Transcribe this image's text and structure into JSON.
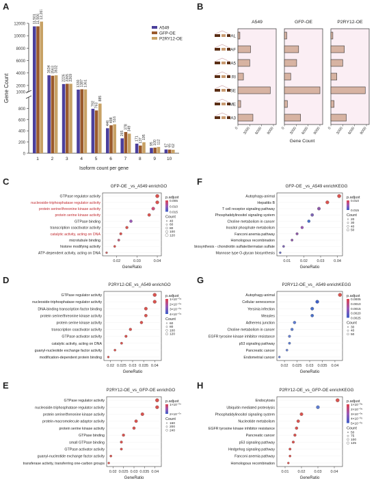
{
  "panels": {
    "A": {
      "label": "A",
      "chart_data": {
        "type": "bar",
        "ylabel": "Gene Count",
        "xlabel": "Isoform count per gene",
        "categories": [
          "1",
          "2",
          "3",
          "4",
          "5",
          "6",
          "7",
          "8",
          "9",
          "10"
        ],
        "ylim_lower": [
          0,
          1000
        ],
        "ylim_upper": [
          1000,
          12000
        ],
        "yticks": [
          "0",
          "200",
          "400",
          "600",
          "800",
          "1000",
          "2000",
          "4000",
          "6000",
          "8000",
          "10000",
          "12000"
        ],
        "series": [
          {
            "name": "A549",
            "color": "#4b3f9c",
            "values": [
              11501,
              3634,
              2226,
              1330,
              792,
              446,
              265,
              171,
              95,
              67
            ]
          },
          {
            "name": "GFP-OE",
            "color": "#9a5a2c",
            "values": [
              11506,
              3563,
              2265,
              1387,
              763,
              498,
              378,
              137,
              100,
              65
            ]
          },
          {
            "name": "P2RY12-OE",
            "color": "#c8a266",
            "values": [
              12267,
              3632,
              2269,
              1361,
              885,
              516,
              349,
              195,
              112,
              62
            ]
          }
        ],
        "labels": [
          [
            "11,501",
            "11,506",
            "12,267"
          ],
          [
            "3634",
            "3563",
            "3632"
          ],
          [
            "2226",
            "2265",
            "2269"
          ],
          [
            "1330",
            "1387",
            "1361"
          ],
          [
            "792",
            "763",
            "885"
          ],
          [
            "446",
            "498",
            "516"
          ],
          [
            "265",
            "378",
            "349"
          ],
          [
            "171",
            "137",
            "195"
          ],
          [
            "95",
            "100",
            "112"
          ],
          [
            "67",
            "65",
            "62"
          ]
        ]
      }
    },
    "B": {
      "label": "B",
      "chart_data": {
        "type": "bar",
        "orientation": "horizontal",
        "xlabel": "Gene Count",
        "categories": [
          "AL",
          "AF",
          "A5",
          "RI",
          "SE",
          "ME",
          "A3"
        ],
        "xticks": [
          "0",
          "3000",
          "6000",
          "9000"
        ],
        "xlim": [
          0,
          9000
        ],
        "facets": [
          {
            "name": "A549",
            "values": [
              500,
              3200,
              3000,
              1400,
              8200,
              700,
              3800
            ]
          },
          {
            "name": "GFP-OE",
            "values": [
              600,
              3600,
              3100,
              1600,
              9000,
              750,
              4100
            ]
          },
          {
            "name": "P2RY12-OE",
            "values": [
              500,
              3400,
              3000,
              1500,
              8700,
              800,
              3900
            ]
          }
        ],
        "bar_color": "#d7b3a2"
      }
    },
    "dotplots": [
      {
        "label": "C",
        "title": "GFP-OE _vs_A549 enrichGO",
        "xlabel": "GeneRatio",
        "xticks": [
          "0.02",
          "0.03",
          "0.04"
        ],
        "xlim": [
          0.013,
          0.042
        ],
        "legend_title": "p.adjust",
        "legend_ticks": [
          "0.005",
          "0.010",
          "0.015"
        ],
        "count_title": "Count",
        "count_values": [
          "40",
          "60",
          "80",
          "100",
          "120"
        ],
        "chart_data": {
          "type": "scatter",
          "terms": [
            "GTPase regulator activity",
            "nucleoside-triphosphatase regulator activity",
            "protein serine/threonine kinase activity",
            "protein serine kinase activity",
            "GTPase binding",
            "transcription coactivator activity",
            "catalytic activity, acting on DNA",
            "microtubule binding",
            "histone modifying activity",
            "ATP-dependent activity, acting on DNA"
          ],
          "x": [
            0.04,
            0.04,
            0.038,
            0.036,
            0.027,
            0.025,
            0.022,
            0.021,
            0.019,
            0.015
          ],
          "colors": [
            "#d9534f",
            "#d9534f",
            "#cf4f78",
            "#d9534f",
            "#9b59b6",
            "#d9534f",
            "#d9534f",
            "#c0607a",
            "#d9534f",
            "#cc6a6a"
          ],
          "red_terms": [
            1,
            2,
            3,
            6
          ]
        }
      },
      {
        "label": "D",
        "title": "P2RY12-OE_vs_A549 enrichGO",
        "xlabel": "GeneRatio",
        "xticks": [
          "0.02",
          "0.025",
          "0.03",
          "0.035",
          "0.04"
        ],
        "xlim": [
          0.017,
          0.043
        ],
        "legend_title": "p.adjust",
        "legend_ticks": [
          "1×10⁻⁰⁴",
          "2×10⁻⁰⁴",
          "3×10⁻⁰⁴",
          "4×10⁻⁰⁴"
        ],
        "count_title": "Count",
        "count_values": [
          "60",
          "80",
          "100",
          "120"
        ],
        "chart_data": {
          "type": "scatter",
          "terms": [
            "GTPase regulator activity",
            "nucleoside-triphosphatase regulator activity",
            "DNA-binding transcription factor binding",
            "protein serine/threonine kinase activity",
            "protein serine kinase activity",
            "transcription coactivator activity",
            "GTPase activator activity",
            "catalytic activity, acting on DNA",
            "guanyl-nucleotide exchange factor activity",
            "modification-dependent protein binding"
          ],
          "x": [
            0.04,
            0.04,
            0.036,
            0.036,
            0.034,
            0.029,
            0.027,
            0.025,
            0.022,
            0.019
          ],
          "colors": [
            "#d9534f",
            "#d9534f",
            "#d9534f",
            "#d9534f",
            "#d9534f",
            "#d9534f",
            "#d9534f",
            "#d9534f",
            "#d9534f",
            "#d9534f"
          ],
          "red_terms": []
        }
      },
      {
        "label": "E",
        "title": "P2RY12-OE_vs_GFP-OE enrichGO",
        "xlabel": "GeneRatio",
        "xticks": [
          "0.02",
          "0.025",
          "0.03",
          "0.035",
          "0.04"
        ],
        "xlim": [
          0.017,
          0.043
        ],
        "legend_title": "p.adjust",
        "legend_ticks": [
          "1×10⁻⁰⁷",
          "2×10⁻⁰⁷"
        ],
        "count_title": "Count",
        "count_values": [
          "160",
          "200",
          "240"
        ],
        "chart_data": {
          "type": "scatter",
          "terms": [
            "GTPase regulator activity",
            "nucleoside-triphosphatase regulator activity",
            "protein serine/threonine kinase activity",
            "protein-macromolecule adaptor activity",
            "protein serine kinase activity",
            "GTPase binding",
            "small GTPase binding",
            "GTPase activator activity",
            "guanyl-nucleotide exchange factor activity",
            "transferase activity, transferring one-carbon groups"
          ],
          "x": [
            0.041,
            0.041,
            0.034,
            0.031,
            0.03,
            0.025,
            0.024,
            0.024,
            0.019,
            0.018
          ],
          "colors": [
            "#d9534f",
            "#d9534f",
            "#d9534f",
            "#d9534f",
            "#d9534f",
            "#d9534f",
            "#d9534f",
            "#d9534f",
            "#d9534f",
            "#d9534f"
          ],
          "red_terms": []
        }
      },
      {
        "label": "F",
        "title": "GFP-OE _vs_A549 enrichKEGG",
        "xlabel": "GeneRatio",
        "xticks": [
          "0.01",
          "0.02",
          "0.03",
          "0.04"
        ],
        "xlim": [
          0.004,
          0.043
        ],
        "legend_title": "p.adjust",
        "legend_ticks": [
          "0.010",
          "0.015"
        ],
        "count_title": "Count",
        "count_values": [
          "20",
          "30",
          "40",
          "50"
        ],
        "chart_data": {
          "type": "scatter",
          "terms": [
            "Autophagy-animal",
            "Hepatitis B",
            "T cell receptor signaling pathway",
            "Phosphatidylinositol signaling system",
            "Choline metabolism in cancer",
            "Inositol phosphate metabolism",
            "Fanconi anemia pathway",
            "Homologous recombination",
            "Glycosaminoglycan biosynthesis - chondroitin sulfate/dermatan sulfate",
            "Mannose type O-glycan biosynthesis"
          ],
          "x": [
            0.041,
            0.034,
            0.029,
            0.025,
            0.023,
            0.019,
            0.016,
            0.013,
            0.008,
            0.006
          ],
          "colors": [
            "#d9534f",
            "#d9534f",
            "#8e5aa8",
            "#7d64b5",
            "#4a6fc8",
            "#9b59b6",
            "#8e5aa8",
            "#8e5aa8",
            "#7d64b5",
            "#6a6fc0"
          ],
          "red_terms": []
        }
      },
      {
        "label": "G",
        "title": "P2RY12-OE_vs_ A549 enrichKEGG",
        "xlabel": "GeneRatio",
        "xticks": [
          "0.02",
          "0.025",
          "0.03",
          "0.035",
          "0.04"
        ],
        "xlim": [
          0.017,
          0.043
        ],
        "legend_title": "p.adjust",
        "legend_ticks": [
          "0.0005",
          "0.0010",
          "0.0015",
          "0.0020",
          "0.0025"
        ],
        "count_title": "Count",
        "count_values": [
          "30",
          "40",
          "50"
        ],
        "chart_data": {
          "type": "scatter",
          "terms": [
            "Autophagy-animal",
            "Cellular senescence",
            "Yersinia infection",
            "Measles",
            "Adherens junction",
            "Choline metabolism in cancer",
            "EGFR tyrosine kinase inhibitor resistance",
            "p53 signaling pathway",
            "Pancreatic cancer",
            "Endometrial cancer"
          ],
          "x": [
            0.042,
            0.033,
            0.031,
            0.031,
            0.024,
            0.023,
            0.022,
            0.022,
            0.021,
            0.018
          ],
          "colors": [
            "#d9534f",
            "#3d5fc7",
            "#4a6fc8",
            "#4a6fc8",
            "#5d7cd0",
            "#5d7cd0",
            "#6a82d0",
            "#5d7cd0",
            "#6a82d0",
            "#6a82d0"
          ],
          "red_terms": []
        }
      },
      {
        "label": "H",
        "title": "P2RY12-OE_vs_GFP-OE enrichKEGG",
        "xlabel": "GeneRatio",
        "xticks": [
          "0.01",
          "0.02",
          "0.03",
          "0.04"
        ],
        "xlim": [
          0.005,
          0.045
        ],
        "legend_title": "p.adjust",
        "legend_ticks": [
          "1×10⁻⁰⁵",
          "2×10⁻⁰⁵",
          "3×10⁻⁰⁵",
          "4×10⁻⁰⁵",
          "5×10⁻⁰⁵"
        ],
        "count_title": "Count",
        "count_values": [
          "50",
          "75",
          "100",
          "125"
        ],
        "chart_data": {
          "type": "scatter",
          "terms": [
            "Endocytosis",
            "Ubiquitin mediated proteolysis",
            "Phosphatidylinositol signaling system",
            "Nucleotide metabolism",
            "EGFR tyrosine kinase inhibitor resistance",
            "Pancreatic cancer",
            "p53 signaling pathway",
            "Hedgehog signaling pathway",
            "Fanconi anemia pathway",
            "Homologous recombination"
          ],
          "x": [
            0.042,
            0.03,
            0.02,
            0.018,
            0.017,
            0.016,
            0.015,
            0.013,
            0.013,
            0.012
          ],
          "colors": [
            "#d9534f",
            "#5d7cd0",
            "#d9534f",
            "#d9534f",
            "#d9534f",
            "#d9534f",
            "#d9534f",
            "#d9534f",
            "#d9534f",
            "#d9534f"
          ],
          "red_terms": []
        }
      }
    ]
  }
}
